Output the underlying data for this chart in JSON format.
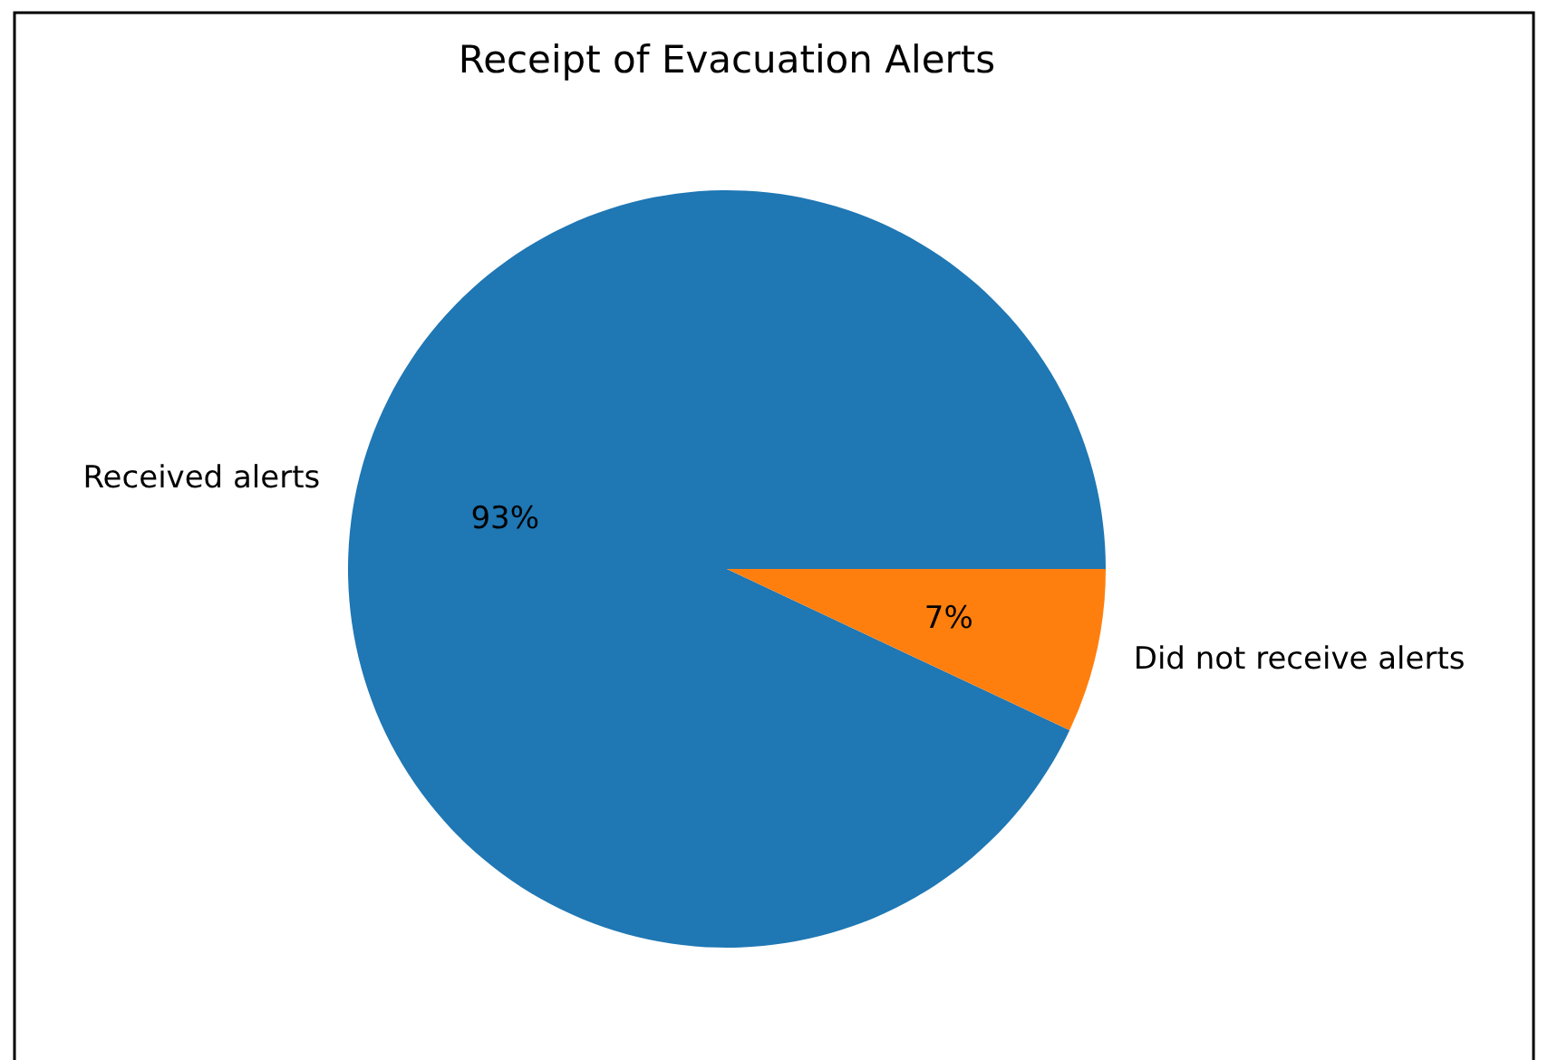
{
  "chart_data": {
    "type": "pie",
    "title": "Receipt of Evacuation Alerts",
    "categories": [
      "Received alerts",
      "Did not receive alerts"
    ],
    "values": [
      93,
      7
    ],
    "colors": [
      "#1f77b4",
      "#ff7f0e"
    ],
    "value_labels": [
      "93%",
      "7%"
    ]
  }
}
